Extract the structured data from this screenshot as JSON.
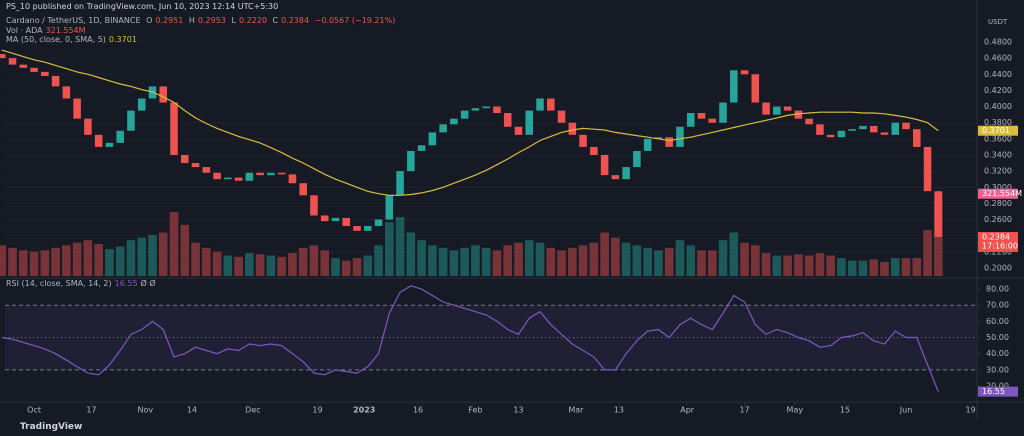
{
  "header": "PS_10 published on TradingView.com, Jun 10, 2023 12:14 UTC+5:30",
  "footer": "TradingView",
  "chart_data": {
    "type": "candlestick",
    "legend": {
      "name": "Cardano / TetherUS, 1D, BINANCE",
      "fields": [
        {
          "key": "O",
          "text": "0.2951"
        },
        {
          "key": "H",
          "text": "0.2953"
        },
        {
          "key": "L",
          "text": "0.2220"
        },
        {
          "key": "C",
          "text": "0.2384"
        }
      ],
      "change": "−0.0567 (−19.21%)"
    },
    "currency": "USDT",
    "countdown": "17:16:00",
    "xlim": [
      0.3,
      90.5
    ],
    "xticks": [
      {
        "value": 3,
        "label": "Oct"
      },
      {
        "value": 8.33,
        "label": "17"
      },
      {
        "value": 13.33,
        "label": "Nov"
      },
      {
        "value": 17.67,
        "label": "14"
      },
      {
        "value": 23.33,
        "label": "Dec"
      },
      {
        "value": 29.33,
        "label": "19"
      },
      {
        "value": 33.67,
        "label": "2023"
      },
      {
        "value": 38.67,
        "label": "16"
      },
      {
        "value": 44,
        "label": "Feb"
      },
      {
        "value": 48,
        "label": "13"
      },
      {
        "value": 53.33,
        "label": "Mar"
      },
      {
        "value": 57.33,
        "label": "13"
      },
      {
        "value": 63.67,
        "label": "Apr"
      },
      {
        "value": 69,
        "label": "17"
      },
      {
        "value": 73.67,
        "label": "May"
      },
      {
        "value": 78.33,
        "label": "15"
      },
      {
        "value": 84,
        "label": "Jun"
      },
      {
        "value": 90,
        "label": "19"
      }
    ],
    "ylim": [
      0.19,
      0.5135
    ],
    "yticks": [
      {
        "value": 0.48,
        "label": "0.4800"
      },
      {
        "value": 0.46,
        "label": "0.4600"
      },
      {
        "value": 0.44,
        "label": "0.4400"
      },
      {
        "value": 0.42,
        "label": "0.4200"
      },
      {
        "value": 0.4,
        "label": "0.4000"
      },
      {
        "value": 0.38,
        "label": "0.3800"
      },
      {
        "value": 0.36,
        "label": "0.3600"
      },
      {
        "value": 0.34,
        "label": "0.3400"
      },
      {
        "value": 0.32,
        "label": "0.3200"
      },
      {
        "value": 0.3,
        "label": "0.3000"
      },
      {
        "value": 0.28,
        "label": "0.2800"
      },
      {
        "value": 0.26,
        "label": "0.2600"
      },
      {
        "value": 0.24,
        "label": "0.2400"
      },
      {
        "value": 0.22,
        "label": "0.2200"
      },
      {
        "value": 0.2,
        "label": "0.2000"
      }
    ],
    "grid": true,
    "up_color": "#26a69a",
    "down_color": "#ef5350",
    "open": [
      0.465,
      0.46,
      0.452,
      0.448,
      0.443,
      0.438,
      0.425,
      0.41,
      0.385,
      0.365,
      0.35,
      0.355,
      0.37,
      0.395,
      0.41,
      0.425,
      0.405,
      0.34,
      0.33,
      0.325,
      0.318,
      0.31,
      0.312,
      0.308,
      0.318,
      0.315,
      0.318,
      0.316,
      0.305,
      0.29,
      0.265,
      0.258,
      0.262,
      0.252,
      0.246,
      0.252,
      0.26,
      0.29,
      0.32,
      0.345,
      0.352,
      0.368,
      0.378,
      0.385,
      0.395,
      0.398,
      0.4,
      0.392,
      0.375,
      0.365,
      0.395,
      0.41,
      0.395,
      0.38,
      0.365,
      0.35,
      0.34,
      0.315,
      0.31,
      0.325,
      0.345,
      0.36,
      0.362,
      0.35,
      0.375,
      0.392,
      0.385,
      0.38,
      0.405,
      0.445,
      0.44,
      0.405,
      0.39,
      0.4,
      0.395,
      0.385,
      0.378,
      0.365,
      0.362,
      0.37,
      0.372,
      0.376,
      0.368,
      0.365,
      0.38,
      0.372,
      0.35,
      0.2951
    ],
    "close": [
      0.46,
      0.452,
      0.448,
      0.443,
      0.438,
      0.425,
      0.41,
      0.385,
      0.365,
      0.35,
      0.355,
      0.37,
      0.395,
      0.41,
      0.425,
      0.405,
      0.34,
      0.33,
      0.325,
      0.318,
      0.31,
      0.312,
      0.308,
      0.318,
      0.315,
      0.318,
      0.316,
      0.305,
      0.29,
      0.265,
      0.258,
      0.262,
      0.252,
      0.246,
      0.252,
      0.26,
      0.29,
      0.32,
      0.345,
      0.352,
      0.368,
      0.378,
      0.385,
      0.395,
      0.398,
      0.4,
      0.392,
      0.375,
      0.365,
      0.395,
      0.41,
      0.395,
      0.38,
      0.365,
      0.35,
      0.34,
      0.315,
      0.31,
      0.325,
      0.345,
      0.36,
      0.362,
      0.35,
      0.375,
      0.392,
      0.385,
      0.38,
      0.405,
      0.445,
      0.44,
      0.405,
      0.39,
      0.4,
      0.395,
      0.385,
      0.378,
      0.365,
      0.362,
      0.37,
      0.372,
      0.376,
      0.368,
      0.365,
      0.38,
      0.372,
      0.35,
      0.2951,
      0.2384
    ],
    "volume": {
      "name": "Vol · ADA",
      "vlim": [
        0,
        1020
      ],
      "values": [
        120,
        110,
        100,
        95,
        100,
        110,
        120,
        130,
        140,
        125,
        105,
        115,
        140,
        150,
        160,
        170,
        250,
        200,
        130,
        110,
        95,
        80,
        75,
        90,
        85,
        80,
        75,
        90,
        110,
        120,
        100,
        70,
        60,
        70,
        80,
        120,
        210,
        230,
        170,
        140,
        120,
        110,
        100,
        110,
        120,
        110,
        100,
        120,
        130,
        140,
        130,
        110,
        100,
        110,
        120,
        130,
        170,
        150,
        130,
        120,
        110,
        100,
        110,
        140,
        120,
        100,
        100,
        140,
        170,
        130,
        120,
        90,
        80,
        80,
        85,
        80,
        90,
        80,
        70,
        60,
        60,
        65,
        55,
        70,
        70,
        70,
        180,
        321.554
      ],
      "value_labels": [
        null,
        null,
        null,
        null,
        null,
        null,
        null,
        null,
        null,
        null,
        null,
        null,
        null,
        null,
        null,
        null,
        null,
        null,
        null,
        null,
        null,
        null,
        null,
        null,
        null,
        null,
        null,
        null,
        null,
        null,
        null,
        null,
        null,
        null,
        null,
        null,
        null,
        null,
        null,
        null,
        null,
        null,
        null,
        null,
        null,
        null,
        null,
        null,
        null,
        null,
        null,
        null,
        null,
        null,
        null,
        null,
        null,
        null,
        null,
        null,
        null,
        null,
        null,
        null,
        null,
        null,
        null,
        null,
        null,
        null,
        null,
        null,
        null,
        null,
        null,
        null,
        null,
        null,
        null,
        null,
        null,
        null,
        null,
        null,
        null,
        null,
        null,
        "321.554M"
      ]
    },
    "ma": {
      "name": "MA (50, close, 0, SMA, 5)",
      "color": "#d8be3a",
      "values": [
        0.47,
        0.466,
        0.462,
        0.458,
        0.455,
        0.451,
        0.447,
        0.443,
        0.44,
        0.436,
        0.432,
        0.428,
        0.425,
        0.421,
        0.418,
        0.412,
        0.405,
        0.395,
        0.386,
        0.379,
        0.373,
        0.368,
        0.363,
        0.359,
        0.355,
        0.349,
        0.343,
        0.336,
        0.33,
        0.323,
        0.316,
        0.31,
        0.305,
        0.3,
        0.295,
        0.292,
        0.29,
        0.29,
        0.291,
        0.293,
        0.296,
        0.3,
        0.305,
        0.31,
        0.315,
        0.321,
        0.328,
        0.335,
        0.343,
        0.35,
        0.358,
        0.363,
        0.368,
        0.371,
        0.373,
        0.372,
        0.371,
        0.368,
        0.366,
        0.364,
        0.362,
        0.36,
        0.358,
        0.36,
        0.362,
        0.365,
        0.368,
        0.371,
        0.374,
        0.377,
        0.38,
        0.383,
        0.386,
        0.389,
        0.391,
        0.392,
        0.393,
        0.393,
        0.393,
        0.393,
        0.392,
        0.392,
        0.391,
        0.389,
        0.387,
        0.384,
        0.38,
        0.3701
      ]
    },
    "rsi": {
      "name": "RSI (14, close, SMA, 14, 2)",
      "color": "#7e57c2",
      "flags": "Ø Ø",
      "ylim": [
        12.6,
        85.6
      ],
      "yticks": [
        {
          "value": 80,
          "label": "80.00"
        },
        {
          "value": 70,
          "label": "70.00"
        },
        {
          "value": 60,
          "label": "60.00"
        },
        {
          "value": 50,
          "label": "50.00"
        },
        {
          "value": 40,
          "label": "40.00"
        },
        {
          "value": 30,
          "label": "30.00"
        },
        {
          "value": 20,
          "label": "20.00"
        }
      ],
      "upper": 70,
      "middle": 50,
      "lower": 30,
      "values": [
        50,
        49,
        47,
        45,
        43,
        40,
        36,
        32,
        28,
        27,
        33,
        42,
        52,
        55,
        60,
        55,
        38,
        40,
        44,
        42,
        40,
        43,
        42,
        46,
        45,
        46,
        45,
        40,
        35,
        28,
        27,
        30,
        29,
        28,
        32,
        40,
        65,
        78,
        82,
        80,
        76,
        72,
        70,
        68,
        66,
        64,
        60,
        55,
        52,
        62,
        66,
        58,
        52,
        46,
        42,
        38,
        30,
        30,
        40,
        48,
        54,
        55,
        50,
        58,
        62,
        58,
        55,
        65,
        76,
        72,
        58,
        52,
        55,
        53,
        50,
        48,
        44,
        45,
        50,
        51,
        53,
        48,
        46,
        54,
        50,
        50,
        33,
        16.55
      ]
    }
  }
}
